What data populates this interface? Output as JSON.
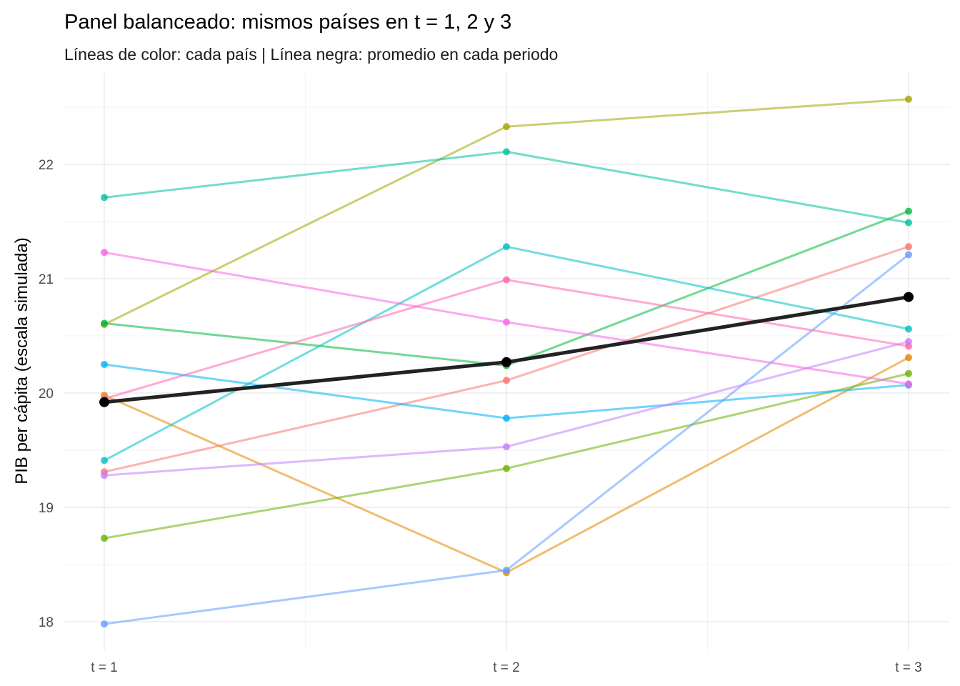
{
  "chart_data": {
    "type": "line",
    "title": "Panel balanceado: mismos países en t = 1, 2 y 3",
    "subtitle": "Líneas de color: cada país | Línea negra: promedio en cada periodo",
    "xlabel": "",
    "ylabel": "PIB per cápita (escala simulada)",
    "categories": [
      "t = 1",
      "t = 2",
      "t = 3"
    ],
    "y_ticks": [
      18,
      19,
      20,
      21,
      22
    ],
    "ylim": [
      17.75,
      22.8
    ],
    "grid": true,
    "legend": "none",
    "series": [
      {
        "color": "#F8766D",
        "values": [
          19.31,
          20.11,
          21.28
        ]
      },
      {
        "color": "#E58700",
        "values": [
          19.98,
          18.43,
          20.31
        ]
      },
      {
        "color": "#A3A500",
        "values": [
          20.6,
          22.33,
          22.57
        ]
      },
      {
        "color": "#6BB100",
        "values": [
          18.73,
          19.34,
          20.17
        ]
      },
      {
        "color": "#00BA38",
        "values": [
          20.61,
          20.24,
          21.59
        ]
      },
      {
        "color": "#00C19F",
        "values": [
          21.71,
          22.11,
          21.49
        ]
      },
      {
        "color": "#00BFC4",
        "values": [
          19.41,
          21.28,
          20.56
        ]
      },
      {
        "color": "#00B0F6",
        "values": [
          20.25,
          19.78,
          20.07
        ]
      },
      {
        "color": "#619CFF",
        "values": [
          17.98,
          18.45,
          21.21
        ]
      },
      {
        "color": "#C77CFF",
        "values": [
          19.28,
          19.53,
          20.45
        ]
      },
      {
        "color": "#F564E3",
        "values": [
          21.23,
          20.62,
          20.08
        ]
      },
      {
        "color": "#FF64B0",
        "values": [
          19.95,
          20.99,
          20.41
        ]
      }
    ],
    "average": {
      "color": "#222222",
      "values": [
        19.92,
        20.27,
        20.84
      ]
    }
  }
}
